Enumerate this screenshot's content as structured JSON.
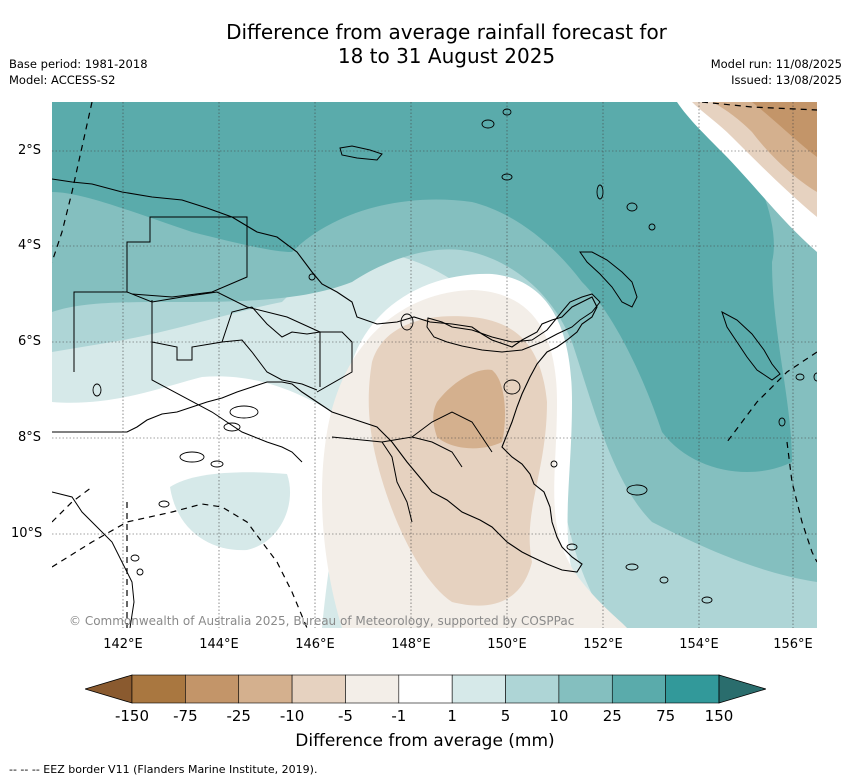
{
  "title_line1": "Difference from average rainfall forecast for",
  "title_line2": "18 to 31 August 2025",
  "meta_left": [
    "Base period: 1981-2018",
    "Model: ACCESS-S2"
  ],
  "meta_right": [
    "Model run: 11/08/2025",
    "Issued: 13/08/2025"
  ],
  "lat_labels": [
    "2°S",
    "4°S",
    "6°S",
    "8°S",
    "10°S"
  ],
  "lon_labels": [
    "142°E",
    "144°E",
    "146°E",
    "148°E",
    "150°E",
    "152°E",
    "154°E",
    "156°E"
  ],
  "copyright": "© Commonwealth of Australia 2025, Bureau of Meteorology, supported by COSPPac",
  "colorbar": {
    "label": "Difference from average (mm)",
    "ticks": [
      "-150",
      "-75",
      "-25",
      "-10",
      "-5",
      "-1",
      "1",
      "5",
      "10",
      "25",
      "75",
      "150"
    ],
    "colors": [
      "#8a5a2f",
      "#a97740",
      "#c39569",
      "#d4b08e",
      "#e6d2c0",
      "#f3eee8",
      "#ffffff",
      "#d6e9e9",
      "#aed5d6",
      "#84bfbf",
      "#5aabab",
      "#32999a",
      "#2a6d6d"
    ]
  },
  "footer": "-- -- -- EEZ border V11 (Flanders Marine Institute, 2019)."
}
